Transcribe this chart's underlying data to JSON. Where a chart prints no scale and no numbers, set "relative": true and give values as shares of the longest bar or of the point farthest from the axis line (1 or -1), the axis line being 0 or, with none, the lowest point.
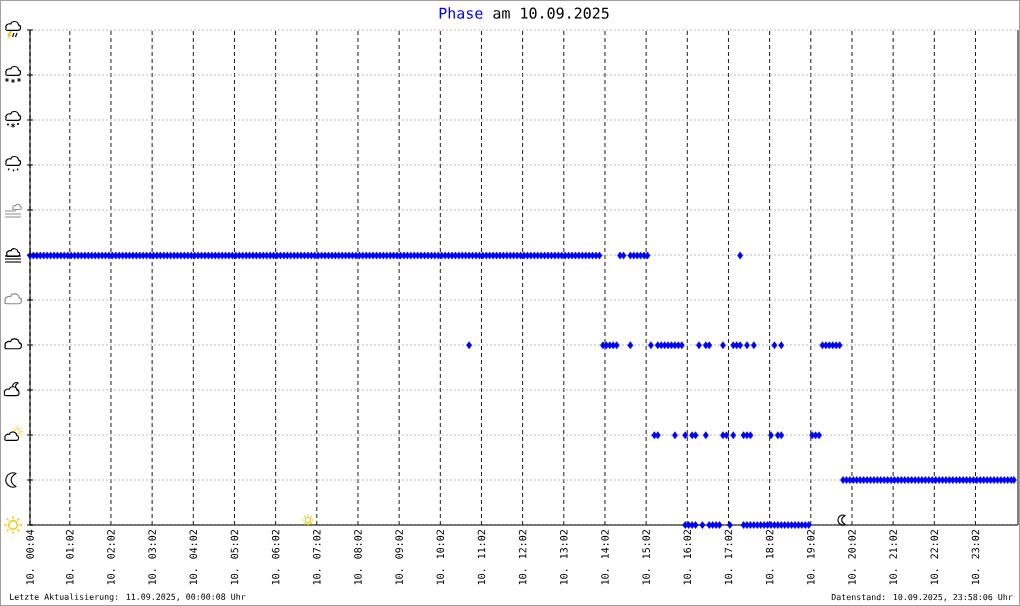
{
  "chart_data": {
    "type": "scatter",
    "title": "Phase am 10.09.2025",
    "annotations": [
      "Letzte Aktualisierung: 11.09.2025, 00:00:08 Uhr",
      "Datenstand: 10.09.2025, 23:58:06 Uhr"
    ],
    "color": "#0000ff",
    "marker": "diamond",
    "grid": true,
    "tick_labels": "x",
    "relative": true,
    "xlim": [
      "2025-09-10T00:04",
      "2025-09-11T00:04"
    ],
    "xticks": [
      {
        "value": "2025-09-10T00:04",
        "label": "10. 00:04"
      },
      {
        "value": "2025-09-10T01:02",
        "label": "10. 01:02"
      },
      {
        "value": "2025-09-10T02:02",
        "label": "10. 02:02"
      },
      {
        "value": "2025-09-10T03:02",
        "label": "10. 03:02"
      },
      {
        "value": "2025-09-10T04:02",
        "label": "10. 04:02"
      },
      {
        "value": "2025-09-10T05:02",
        "label": "10. 05:02"
      },
      {
        "value": "2025-09-10T06:02",
        "label": "10. 06:02"
      },
      {
        "value": "2025-09-10T07:02",
        "label": "10. 07:02"
      },
      {
        "value": "2025-09-10T08:02",
        "label": "10. 08:02"
      },
      {
        "value": "2025-09-10T09:02",
        "label": "10. 09:02"
      },
      {
        "value": "2025-09-10T10:02",
        "label": "10. 10:02"
      },
      {
        "value": "2025-09-10T11:02",
        "label": "10. 11:02"
      },
      {
        "value": "2025-09-10T12:02",
        "label": "10. 12:02"
      },
      {
        "value": "2025-09-10T13:02",
        "label": "10. 13:02"
      },
      {
        "value": "2025-09-10T14:02",
        "label": "10. 14:02"
      },
      {
        "value": "2025-09-10T15:02",
        "label": "10. 15:02"
      },
      {
        "value": "2025-09-10T16:02",
        "label": "10. 16:02"
      },
      {
        "value": "2025-09-10T17:02",
        "label": "10. 17:02"
      },
      {
        "value": "2025-09-10T18:02",
        "label": "10. 18:02"
      },
      {
        "value": "2025-09-10T19:02",
        "label": "10. 19:02"
      },
      {
        "value": "2025-09-10T20:02",
        "label": "10. 20:02"
      },
      {
        "value": "2025-09-10T21:02",
        "label": "10. 21:02"
      },
      {
        "value": "2025-09-10T22:02",
        "label": "10. 22:02"
      },
      {
        "value": "2025-09-10T23:02",
        "label": "10. 23:02"
      }
    ],
    "x": [
      "2025-09-10T00:04",
      "2025-09-10T00:09",
      "2025-09-10T00:14",
      "2025-09-10T00:19",
      "2025-09-10T00:24",
      "2025-09-10T00:29",
      "2025-09-10T00:34",
      "2025-09-10T00:39",
      "2025-09-10T00:44",
      "2025-09-10T00:49",
      "2025-09-10T00:54",
      "2025-09-10T00:59",
      "2025-09-10T01:04",
      "2025-09-10T01:09",
      "2025-09-10T01:14",
      "2025-09-10T01:19",
      "2025-09-10T01:24",
      "2025-09-10T01:29",
      "2025-09-10T01:34",
      "2025-09-10T01:39",
      "2025-09-10T01:44",
      "2025-09-10T01:49",
      "2025-09-10T01:54",
      "2025-09-10T01:59",
      "2025-09-10T02:04",
      "2025-09-10T02:09",
      "2025-09-10T02:14",
      "2025-09-10T02:19",
      "2025-09-10T02:24",
      "2025-09-10T02:29",
      "2025-09-10T02:34",
      "2025-09-10T02:39",
      "2025-09-10T02:44",
      "2025-09-10T02:49",
      "2025-09-10T02:54",
      "2025-09-10T02:59",
      "2025-09-10T03:04",
      "2025-09-10T03:09",
      "2025-09-10T03:14",
      "2025-09-10T03:19",
      "2025-09-10T03:24",
      "2025-09-10T03:29",
      "2025-09-10T03:34",
      "2025-09-10T03:39",
      "2025-09-10T03:44",
      "2025-09-10T03:49",
      "2025-09-10T03:54",
      "2025-09-10T03:59",
      "2025-09-10T04:04",
      "2025-09-10T04:09",
      "2025-09-10T04:14",
      "2025-09-10T04:19",
      "2025-09-10T04:24",
      "2025-09-10T04:29",
      "2025-09-10T04:34",
      "2025-09-10T04:39",
      "2025-09-10T04:44",
      "2025-09-10T04:49",
      "2025-09-10T04:54",
      "2025-09-10T04:59",
      "2025-09-10T05:04",
      "2025-09-10T05:09",
      "2025-09-10T05:14",
      "2025-09-10T05:19",
      "2025-09-10T05:24",
      "2025-09-10T05:29",
      "2025-09-10T05:34",
      "2025-09-10T05:39",
      "2025-09-10T05:44",
      "2025-09-10T05:49",
      "2025-09-10T05:54",
      "2025-09-10T05:59",
      "2025-09-10T06:04",
      "2025-09-10T06:09",
      "2025-09-10T06:14",
      "2025-09-10T06:19",
      "2025-09-10T06:24",
      "2025-09-10T06:29",
      "2025-09-10T06:34",
      "2025-09-10T06:39",
      "2025-09-10T06:44",
      "2025-09-10T06:49",
      "2025-09-10T06:54",
      "2025-09-10T06:59",
      "2025-09-10T07:04",
      "2025-09-10T07:09",
      "2025-09-10T07:14",
      "2025-09-10T07:19",
      "2025-09-10T07:24",
      "2025-09-10T07:29",
      "2025-09-10T07:34",
      "2025-09-10T07:39",
      "2025-09-10T07:44",
      "2025-09-10T07:49",
      "2025-09-10T07:54",
      "2025-09-10T07:59",
      "2025-09-10T08:04",
      "2025-09-10T08:09",
      "2025-09-10T08:14",
      "2025-09-10T08:19",
      "2025-09-10T08:24",
      "2025-09-10T08:29",
      "2025-09-10T08:34",
      "2025-09-10T08:39",
      "2025-09-10T08:44",
      "2025-09-10T08:49",
      "2025-09-10T08:54",
      "2025-09-10T08:59",
      "2025-09-10T09:04",
      "2025-09-10T09:09",
      "2025-09-10T09:14",
      "2025-09-10T09:19",
      "2025-09-10T09:24",
      "2025-09-10T09:29",
      "2025-09-10T09:34",
      "2025-09-10T09:39",
      "2025-09-10T09:44",
      "2025-09-10T09:49",
      "2025-09-10T09:54",
      "2025-09-10T09:59",
      "2025-09-10T10:04",
      "2025-09-10T10:09",
      "2025-09-10T10:14",
      "2025-09-10T10:19",
      "2025-09-10T10:24",
      "2025-09-10T10:29",
      "2025-09-10T10:34",
      "2025-09-10T10:39",
      "2025-09-10T10:44",
      "2025-09-10T10:49",
      "2025-09-10T10:54",
      "2025-09-10T10:59",
      "2025-09-10T11:04",
      "2025-09-10T11:09",
      "2025-09-10T11:14",
      "2025-09-10T11:19",
      "2025-09-10T11:24",
      "2025-09-10T11:29",
      "2025-09-10T11:34",
      "2025-09-10T11:39",
      "2025-09-10T11:44",
      "2025-09-10T11:49",
      "2025-09-10T11:54",
      "2025-09-10T11:59",
      "2025-09-10T12:04",
      "2025-09-10T12:09",
      "2025-09-10T12:14",
      "2025-09-10T12:19",
      "2025-09-10T12:24",
      "2025-09-10T12:29",
      "2025-09-10T12:34",
      "2025-09-10T12:39",
      "2025-09-10T12:44",
      "2025-09-10T12:49",
      "2025-09-10T12:54",
      "2025-09-10T12:59",
      "2025-09-10T13:04",
      "2025-09-10T13:09",
      "2025-09-10T13:14",
      "2025-09-10T13:19",
      "2025-09-10T13:24",
      "2025-09-10T13:29",
      "2025-09-10T13:34",
      "2025-09-10T13:39",
      "2025-09-10T13:44",
      "2025-09-10T13:49",
      "2025-09-10T13:54",
      "2025-09-10T14:24",
      "2025-09-10T14:29",
      "2025-09-10T14:39",
      "2025-09-10T14:44",
      "2025-09-10T14:49",
      "2025-09-10T14:54",
      "2025-09-10T14:59",
      "2025-09-10T15:04",
      "2025-09-10T17:19",
      "2025-09-10T10:44",
      "2025-09-10T13:59",
      "2025-09-10T14:04",
      "2025-09-10T14:09",
      "2025-09-10T14:14",
      "2025-09-10T14:19",
      "2025-09-10T14:39",
      "2025-09-10T15:09",
      "2025-09-10T15:19",
      "2025-09-10T15:24",
      "2025-09-10T15:29",
      "2025-09-10T15:34",
      "2025-09-10T15:39",
      "2025-09-10T15:44",
      "2025-09-10T15:49",
      "2025-09-10T15:54",
      "2025-09-10T16:19",
      "2025-09-10T16:29",
      "2025-09-10T16:34",
      "2025-09-10T16:54",
      "2025-09-10T17:09",
      "2025-09-10T17:14",
      "2025-09-10T17:19",
      "2025-09-10T17:29",
      "2025-09-10T17:39",
      "2025-09-10T18:09",
      "2025-09-10T18:19",
      "2025-09-10T19:19",
      "2025-09-10T19:24",
      "2025-09-10T19:29",
      "2025-09-10T19:34",
      "2025-09-10T19:39",
      "2025-09-10T19:44",
      "2025-09-10T15:14",
      "2025-09-10T15:19",
      "2025-09-10T15:44",
      "2025-09-10T15:59",
      "2025-09-10T16:09",
      "2025-09-10T16:14",
      "2025-09-10T16:29",
      "2025-09-10T16:54",
      "2025-09-10T16:59",
      "2025-09-10T17:09",
      "2025-09-10T17:24",
      "2025-09-10T17:29",
      "2025-09-10T17:34",
      "2025-09-10T18:04",
      "2025-09-10T18:14",
      "2025-09-10T18:19",
      "2025-09-10T19:04",
      "2025-09-10T19:09",
      "2025-09-10T19:14",
      "2025-09-10T15:59",
      "2025-09-10T16:04",
      "2025-09-10T16:09",
      "2025-09-10T16:14",
      "2025-09-10T16:24",
      "2025-09-10T16:34",
      "2025-09-10T16:39",
      "2025-09-10T16:44",
      "2025-09-10T16:49",
      "2025-09-10T17:04",
      "2025-09-10T17:24",
      "2025-09-10T17:29",
      "2025-09-10T17:34",
      "2025-09-10T17:39",
      "2025-09-10T17:44",
      "2025-09-10T17:49",
      "2025-09-10T17:54",
      "2025-09-10T17:59",
      "2025-09-10T18:04",
      "2025-09-10T18:09",
      "2025-09-10T18:14",
      "2025-09-10T18:19",
      "2025-09-10T18:24",
      "2025-09-10T18:29",
      "2025-09-10T18:34",
      "2025-09-10T18:39",
      "2025-09-10T18:44",
      "2025-09-10T18:49",
      "2025-09-10T18:54",
      "2025-09-10T18:59",
      "2025-09-10T19:49",
      "2025-09-10T19:54",
      "2025-09-10T19:59",
      "2025-09-10T20:04",
      "2025-09-10T20:09",
      "2025-09-10T20:14",
      "2025-09-10T20:19",
      "2025-09-10T20:24",
      "2025-09-10T20:29",
      "2025-09-10T20:34",
      "2025-09-10T20:39",
      "2025-09-10T20:44",
      "2025-09-10T20:49",
      "2025-09-10T20:54",
      "2025-09-10T20:59",
      "2025-09-10T21:04",
      "2025-09-10T21:09",
      "2025-09-10T21:14",
      "2025-09-10T21:19",
      "2025-09-10T21:24",
      "2025-09-10T21:29",
      "2025-09-10T21:34",
      "2025-09-10T21:39",
      "2025-09-10T21:44",
      "2025-09-10T21:49",
      "2025-09-10T21:54",
      "2025-09-10T21:59",
      "2025-09-10T22:04",
      "2025-09-10T22:09",
      "2025-09-10T22:14",
      "2025-09-10T22:19",
      "2025-09-10T22:24",
      "2025-09-10T22:29",
      "2025-09-10T22:34",
      "2025-09-10T22:39",
      "2025-09-10T22:44",
      "2025-09-10T22:49",
      "2025-09-10T22:54",
      "2025-09-10T22:59",
      "2025-09-10T23:04",
      "2025-09-10T23:09",
      "2025-09-10T23:14",
      "2025-09-10T23:19",
      "2025-09-10T23:24",
      "2025-09-10T23:29",
      "2025-09-10T23:34",
      "2025-09-10T23:39",
      "2025-09-10T23:44",
      "2025-09-10T23:49",
      "2025-09-10T23:54",
      "2025-09-10T23:58"
    ],
    "values": [
      1,
      1,
      1,
      1,
      1,
      1,
      1,
      1,
      1,
      1,
      1,
      1,
      1,
      1,
      1,
      1,
      1,
      1,
      1,
      1,
      1,
      1,
      1,
      1,
      1,
      1,
      1,
      1,
      1,
      1,
      1,
      1,
      1,
      1,
      1,
      1,
      1,
      1,
      1,
      1,
      1,
      1,
      1,
      1,
      1,
      1,
      1,
      1,
      1,
      1,
      1,
      1,
      1,
      1,
      1,
      1,
      1,
      1,
      1,
      1,
      1,
      1,
      1,
      1,
      1,
      1,
      1,
      1,
      1,
      1,
      1,
      1,
      1,
      1,
      1,
      1,
      1,
      1,
      1,
      1,
      1,
      1,
      1,
      1,
      1,
      1,
      1,
      1,
      1,
      1,
      1,
      1,
      1,
      1,
      1,
      1,
      1,
      1,
      1,
      1,
      1,
      1,
      1,
      1,
      1,
      1,
      1,
      1,
      1,
      1,
      1,
      1,
      1,
      1,
      1,
      1,
      1,
      1,
      1,
      1,
      1,
      1,
      1,
      1,
      1,
      1,
      1,
      1,
      1,
      1,
      1,
      1,
      1,
      1,
      1,
      1,
      1,
      1,
      1,
      1,
      1,
      1,
      1,
      1,
      1,
      1,
      1,
      1,
      1,
      1,
      1,
      1,
      1,
      1,
      1,
      1,
      1,
      1,
      1,
      1,
      1,
      1,
      1,
      1,
      1,
      1,
      1,
      1,
      1,
      1,
      1,
      1,
      1,
      1,
      1,
      1,
      0.667,
      0.667,
      0.667,
      0.667,
      0.667,
      0.667,
      0.667,
      0.667,
      0.667,
      0.667,
      0.667,
      0.667,
      0.667,
      0.667,
      0.667,
      0.667,
      0.667,
      0.667,
      0.667,
      0.667,
      0.667,
      0.667,
      0.667,
      0.667,
      0.667,
      0.667,
      0.667,
      0.667,
      0.667,
      0.667,
      0.667,
      0.667,
      0.667,
      0.333,
      0.333,
      0.333,
      0.333,
      0.333,
      0.333,
      0.333,
      0.333,
      0.333,
      0.333,
      0.333,
      0.333,
      0.333,
      0.333,
      0.333,
      0.333,
      0.333,
      0.333,
      0.333,
      0,
      0,
      0,
      0,
      0,
      0,
      0,
      0,
      0,
      0,
      0,
      0,
      0,
      0,
      0,
      0,
      0,
      0,
      0,
      0,
      0,
      0,
      0,
      0,
      0,
      0,
      0,
      0,
      0,
      0,
      0.167,
      0.167,
      0.167,
      0.167,
      0.167,
      0.167,
      0.167,
      0.167,
      0.167,
      0.167,
      0.167,
      0.167,
      0.167,
      0.167,
      0.167,
      0.167,
      0.167,
      0.167,
      0.167,
      0.167,
      0.167,
      0.167,
      0.167,
      0.167,
      0.167,
      0.167,
      0.167,
      0.167,
      0.167,
      0.167,
      0.167,
      0.167,
      0.167,
      0.167,
      0.167,
      0.167,
      0.167,
      0.167,
      0.167,
      0.167,
      0.167,
      0.167,
      0.167,
      0.167,
      0.167,
      0.167,
      0.167,
      0.167,
      0.167,
      0.167,
      0.167
    ]
  }
}
